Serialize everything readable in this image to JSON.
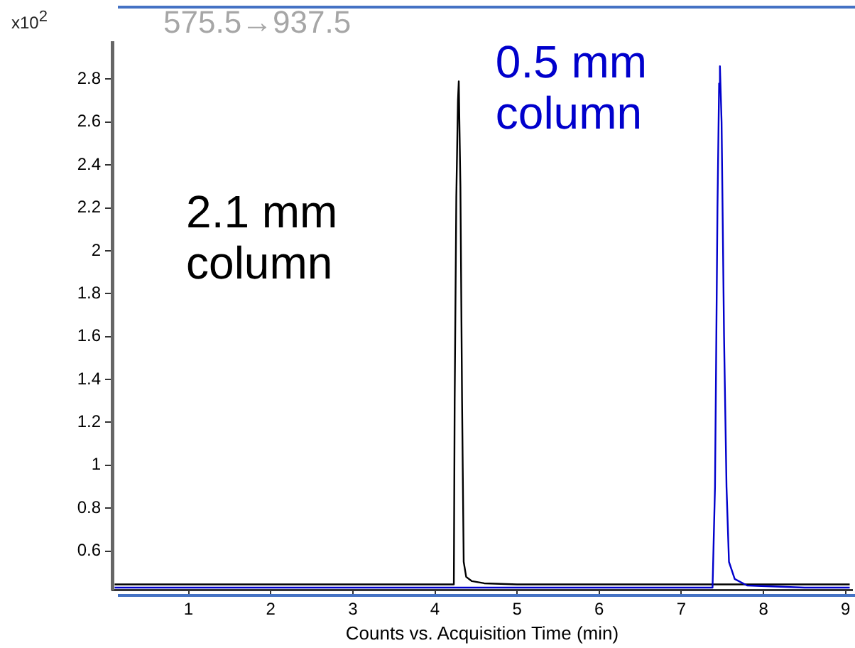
{
  "chart_data": {
    "type": "line",
    "ylabel": "x10$^{2}$",
    "xlabel": "Counts vs. Acquisition Time (min)",
    "annotations": [
      "575.5→937.5"
    ],
    "xlim": [
      0.07,
      9.08
    ],
    "xticks": [
      1,
      2,
      3,
      4,
      5,
      6,
      7,
      8,
      9
    ],
    "ylim": [
      0.42,
      2.97
    ],
    "yticks": [
      0.6,
      0.8,
      1,
      1.2,
      1.4,
      1.6,
      1.8,
      2,
      2.2,
      2.4,
      2.6,
      2.8
    ],
    "grid": false,
    "legend": false,
    "marker": "none",
    "line_style": "solid",
    "series": [
      {
        "name": "2.1 mm column",
        "color": "#000000",
        "x": [
          0.1,
          1.0,
          2.0,
          3.0,
          4.0,
          4.23,
          4.24,
          4.26,
          4.28,
          4.29,
          4.31,
          4.33,
          4.35,
          4.38,
          4.45,
          4.6,
          5.0,
          6.0,
          7.0,
          8.0,
          9.05
        ],
        "values": [
          0.445,
          0.445,
          0.445,
          0.445,
          0.445,
          0.445,
          1.3,
          2.25,
          2.7,
          2.79,
          2.3,
          1.3,
          0.55,
          0.48,
          0.46,
          0.45,
          0.445,
          0.445,
          0.445,
          0.445,
          0.445
        ]
      },
      {
        "name": "0.5 mm column",
        "color": "#0000cc",
        "x": [
          0.1,
          1.0,
          2.0,
          3.0,
          4.0,
          5.0,
          6.0,
          7.0,
          7.38,
          7.41,
          7.44,
          7.46,
          7.47,
          7.49,
          7.52,
          7.55,
          7.58,
          7.65,
          7.8,
          8.5,
          9.05
        ],
        "values": [
          0.43,
          0.43,
          0.43,
          0.43,
          0.43,
          0.43,
          0.43,
          0.43,
          0.43,
          0.9,
          2.2,
          2.78,
          2.86,
          2.6,
          1.6,
          0.9,
          0.55,
          0.47,
          0.44,
          0.43,
          0.43
        ]
      }
    ]
  }
}
